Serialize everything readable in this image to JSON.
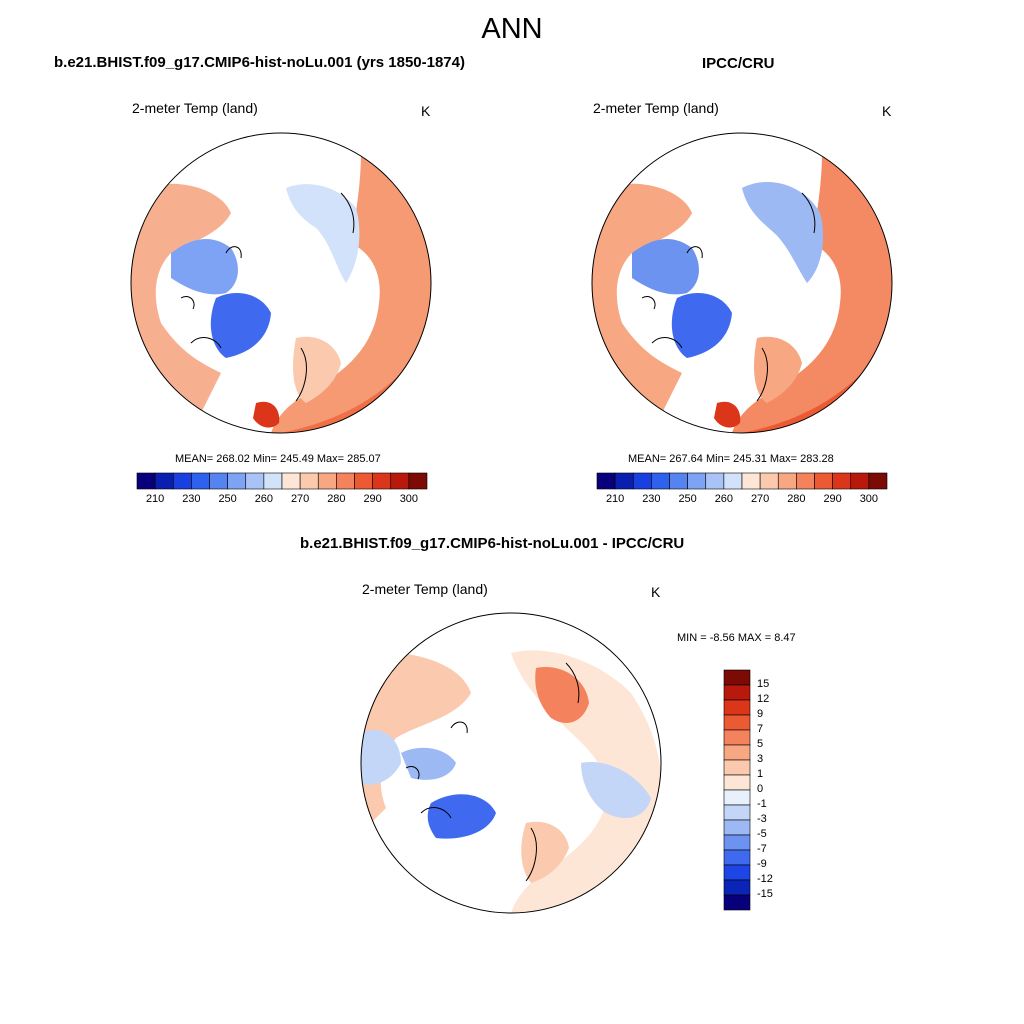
{
  "title": "ANN",
  "panels": [
    {
      "title": "b.e21.BHIST.f09_g17.CMIP6-hist-noLu.001 (yrs 1850-1874)",
      "variable": "2-meter Temp (land)",
      "units": "K",
      "stats": "MEAN= 268.02  Min= 245.49  Max= 285.07"
    },
    {
      "title": "IPCC/CRU",
      "variable": "2-meter Temp (land)",
      "units": "K",
      "stats": "MEAN= 267.64  Min= 245.31  Max= 283.28"
    },
    {
      "title": "b.e21.BHIST.f09_g17.CMIP6-hist-noLu.001 - IPCC/CRU",
      "variable": "2-meter Temp (land)",
      "units": "K",
      "stats": "MIN =  -8.56 MAX =   8.47"
    }
  ],
  "colorbar_abs": {
    "tick_labels": [
      "210",
      "230",
      "250",
      "260",
      "270",
      "280",
      "290",
      "300"
    ],
    "colors": [
      "#08007a",
      "#0a1fb0",
      "#1a3fe0",
      "#2e62ee",
      "#5583ef",
      "#7fa3f4",
      "#a9c3f7",
      "#d2e2fa",
      "#fde6d6",
      "#fbc9ad",
      "#f8a783",
      "#f4825d",
      "#ec5a34",
      "#dc361a",
      "#b8190c",
      "#7c0a05"
    ]
  },
  "colorbar_diff": {
    "tick_labels": [
      "15",
      "12",
      "9",
      "7",
      "5",
      "3",
      "1",
      "0",
      "-1",
      "-3",
      "-5",
      "-7",
      "-9",
      "-12",
      "-15"
    ],
    "colors": [
      "#7c0a05",
      "#b8190c",
      "#dc361a",
      "#ec5a34",
      "#f4825d",
      "#f8a783",
      "#fbc9ad",
      "#fde6d6",
      "#e8f0fc",
      "#c3d6f8",
      "#9db9f4",
      "#6d93f0",
      "#3f6af0",
      "#1e45e6",
      "#0a24b8",
      "#08007a"
    ]
  }
}
